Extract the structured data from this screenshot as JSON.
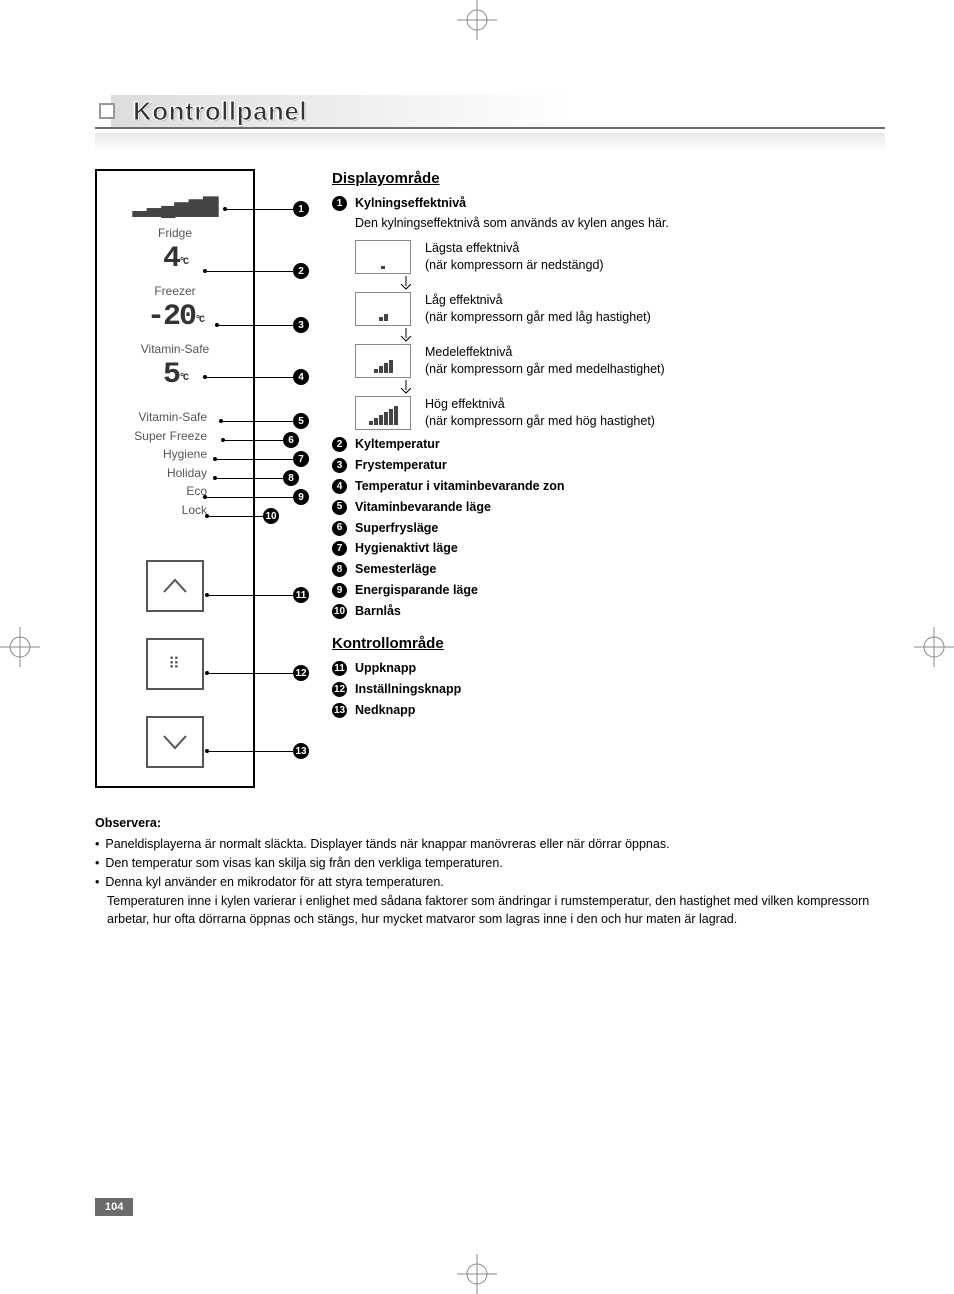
{
  "title": "Kontrollpanel",
  "page_number": "104",
  "panel": {
    "fridge_label": "Fridge",
    "fridge_temp": "4",
    "fridge_unit": "°C",
    "freezer_label": "Freezer",
    "freezer_temp": "-20",
    "freezer_unit": "°C",
    "vitamin_label": "Vitamin-Safe",
    "vitamin_temp": "5",
    "vitamin_unit": "°C",
    "modes": {
      "vitamin_safe": "Vitamin-Safe",
      "super_freeze": "Super Freeze",
      "hygiene": "Hygiene",
      "holiday": "Holiday",
      "eco": "Eco",
      "lock": "Lock"
    }
  },
  "display_section": {
    "heading": "Displayområde",
    "item1": {
      "title": "Kylningseffektnivå",
      "sub": "Den kylningseffektnivå som används av kylen anges här.",
      "levels": [
        {
          "bars": [
            3
          ],
          "t1": "Lägsta effektnivå",
          "t2": "(när kompressorn är nedstängd)"
        },
        {
          "bars": [
            4,
            7
          ],
          "t1": "Låg effektnivå",
          "t2": "(när kompressorn går med låg hastighet)"
        },
        {
          "bars": [
            4,
            7,
            10,
            13
          ],
          "t1": "Medeleffektnivå",
          "t2": "(när kompressorn går med medelhastighet)"
        },
        {
          "bars": [
            4,
            7,
            10,
            13,
            16,
            19
          ],
          "t1": "Hög effektnivå",
          "t2": "(när kompressorn går med hög hastighet)"
        }
      ]
    },
    "items": [
      {
        "n": "2",
        "label": "Kyltemperatur"
      },
      {
        "n": "3",
        "label": "Frystemperatur"
      },
      {
        "n": "4",
        "label": "Temperatur i vitaminbevarande zon"
      },
      {
        "n": "5",
        "label": "Vitaminbevarande läge"
      },
      {
        "n": "6",
        "label": "Superfrysläge"
      },
      {
        "n": "7",
        "label": "Hygienaktivt läge"
      },
      {
        "n": "8",
        "label": "Semesterläge"
      },
      {
        "n": "9",
        "label": "Energisparande läge"
      },
      {
        "n": "10",
        "label": "Barnlås"
      }
    ]
  },
  "control_section": {
    "heading": "Kontrollområde",
    "items": [
      {
        "n": "11",
        "label": "Uppknapp"
      },
      {
        "n": "12",
        "label": "Inställningsknapp"
      },
      {
        "n": "13",
        "label": "Nedknapp"
      }
    ]
  },
  "notes": {
    "heading": "Observera:",
    "bullets": [
      "Paneldisplayerna är normalt släckta. Displayer tänds när knappar manövreras eller när dörrar öppnas.",
      "Den temperatur som visas kan skilja sig från den verkliga temperaturen.",
      "Denna kyl använder en mikrodator för att styra temperaturen."
    ],
    "cont": "Temperaturen inne i kylen varierar i enlighet med sådana faktorer som ändringar i rumstemperatur, den hastighet med vilken kompressorn arbetar, hur ofta dörrarna öppnas och stängs, hur mycket matvaror som lagras inne i den och hur maten är lagrad."
  },
  "callout_numbers": [
    "1",
    "2",
    "3",
    "4",
    "5",
    "6",
    "7",
    "8",
    "9",
    "10",
    "11",
    "12",
    "13"
  ],
  "colors": {
    "text": "#000000",
    "panel_text": "#444444",
    "border": "#000000",
    "title_stroke": "#333333",
    "footer_bg": "#6a6a6a"
  }
}
